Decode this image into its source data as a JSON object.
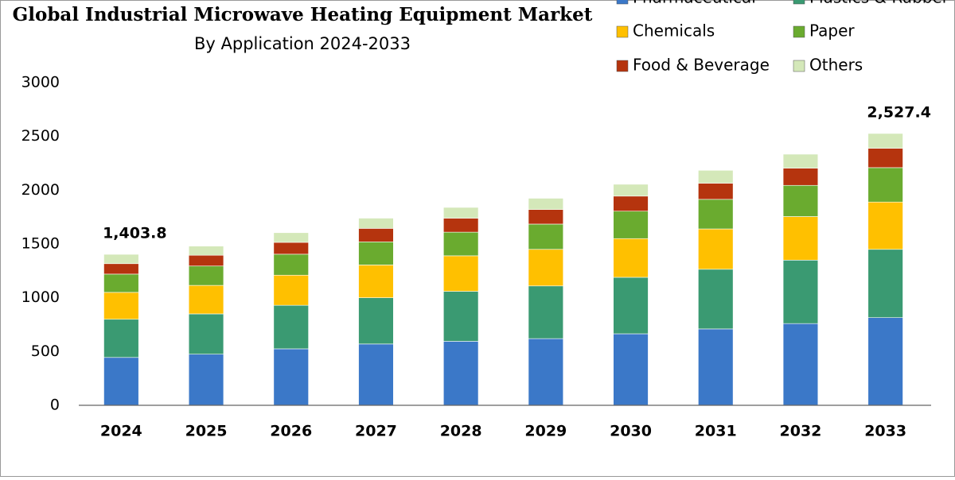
{
  "chart_data": {
    "type": "stacked-bar",
    "title": "Global Industrial Microwave Heating Equipment Market",
    "subtitle": "By Application 2024-2033",
    "categories": [
      "2024",
      "2025",
      "2026",
      "2027",
      "2028",
      "2029",
      "2030",
      "2031",
      "2032",
      "2033"
    ],
    "series": [
      {
        "name": "Pharmaceutical",
        "color": "#3b78c8",
        "values": [
          445,
          475,
          525,
          570,
          595,
          620,
          665,
          710,
          760,
          815
        ]
      },
      {
        "name": "Plastics & Rubber",
        "color": "#3a9a72",
        "values": [
          355,
          375,
          405,
          430,
          465,
          490,
          525,
          555,
          590,
          635
        ]
      },
      {
        "name": "Chemicals",
        "color": "#ffc000",
        "values": [
          250,
          265,
          280,
          305,
          330,
          340,
          360,
          375,
          405,
          440
        ]
      },
      {
        "name": "Paper",
        "color": "#6aab2f",
        "values": [
          170,
          180,
          195,
          215,
          220,
          235,
          255,
          275,
          290,
          320
        ]
      },
      {
        "name": "Food & Beverage",
        "color": "#b5340e",
        "values": [
          97,
          100,
          110,
          125,
          130,
          135,
          140,
          150,
          160,
          180
        ]
      },
      {
        "name": "Others",
        "color": "#d4e8b9",
        "values": [
          86.8,
          85,
          90,
          95,
          100,
          105,
          110,
          120,
          130,
          137.4
        ]
      }
    ],
    "annotations": [
      {
        "category": "2024",
        "text": "1,403.8"
      },
      {
        "category": "2033",
        "text": "2,527.4"
      }
    ],
    "ylim": [
      0,
      3000
    ],
    "yticks": [
      0,
      500,
      1000,
      1500,
      2000,
      2500,
      3000
    ],
    "grid": false,
    "legend": "top-right"
  }
}
